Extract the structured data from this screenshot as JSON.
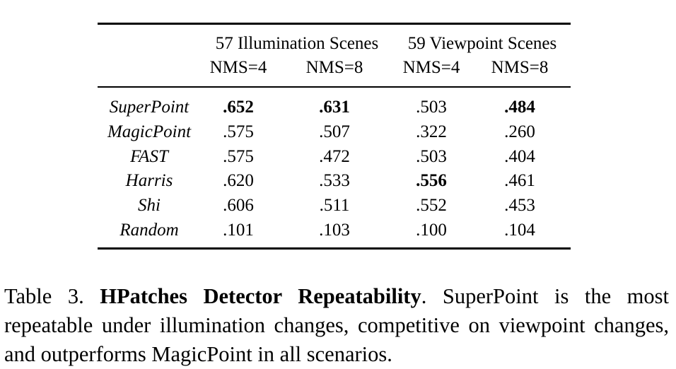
{
  "table": {
    "groups": [
      "57 Illumination Scenes",
      "59 Viewpoint Scenes"
    ],
    "columns": [
      "NMS=4",
      "NMS=8",
      "NMS=4",
      "NMS=8"
    ],
    "rows": [
      {
        "method": "SuperPoint",
        "values": [
          ".652",
          ".631",
          ".503",
          ".484"
        ],
        "bold": [
          true,
          true,
          false,
          true
        ]
      },
      {
        "method": "MagicPoint",
        "values": [
          ".575",
          ".507",
          ".322",
          ".260"
        ],
        "bold": [
          false,
          false,
          false,
          false
        ]
      },
      {
        "method": "FAST",
        "values": [
          ".575",
          ".472",
          ".503",
          ".404"
        ],
        "bold": [
          false,
          false,
          false,
          false
        ]
      },
      {
        "method": "Harris",
        "values": [
          ".620",
          ".533",
          ".556",
          ".461"
        ],
        "bold": [
          false,
          false,
          true,
          false
        ]
      },
      {
        "method": "Shi",
        "values": [
          ".606",
          ".511",
          ".552",
          ".453"
        ],
        "bold": [
          false,
          false,
          false,
          false
        ]
      },
      {
        "method": "Random",
        "values": [
          ".101",
          ".103",
          ".100",
          ".104"
        ],
        "bold": [
          false,
          false,
          false,
          false
        ]
      }
    ]
  },
  "caption": {
    "label": "Table 3.",
    "title": "HPatches Detector Repeatability",
    "text": ". SuperPoint is the most repeatable under illumination changes, competitive on viewpoint changes, and outperforms MagicPoint in all scenarios."
  }
}
